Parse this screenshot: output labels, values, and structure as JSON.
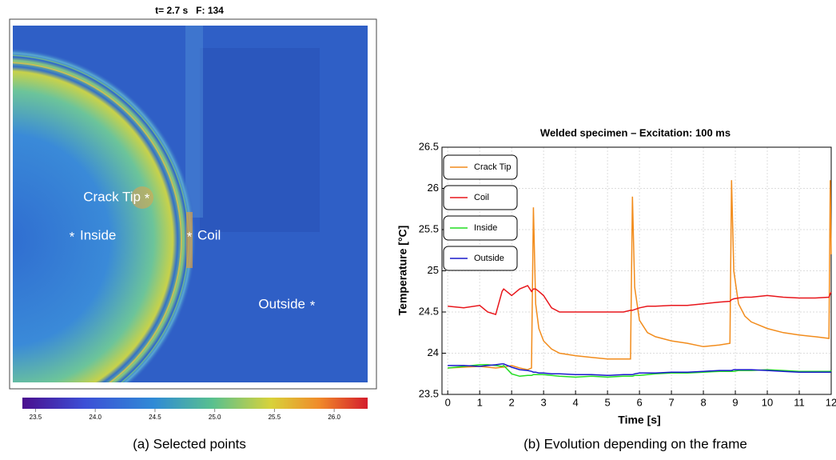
{
  "image": {
    "title": "t= 2.7 s   F: 134",
    "points": [
      "Crack Tip",
      "Inside",
      "Coil",
      "Outside"
    ],
    "colorbar": {
      "lim": [
        23.39,
        26.28
      ],
      "ticks": [
        23.5,
        {
          "value": 24,
          "label": "24.0"
        },
        24.5,
        {
          "value": 25,
          "label": "25.0"
        },
        25.5,
        {
          "value": 26,
          "label": "26.0"
        }
      ]
    }
  },
  "captions": [
    "(a) Selected points",
    "(b) Evolution depending on the frame"
  ],
  "chart_data": {
    "type": "line",
    "title": "Welded specimen – Excitation: 100 ms",
    "xlabel": "Time [s]",
    "ylabel": "Temperature [°C]",
    "x": [
      0,
      0.5,
      1,
      1.25,
      1.5,
      1.7,
      1.75,
      2,
      2.25,
      2.5,
      2.62,
      2.68,
      2.75,
      2.85,
      3,
      3.25,
      3.5,
      4,
      4.5,
      5,
      5.5,
      5.72,
      5.78,
      5.85,
      6,
      6.25,
      6.5,
      7,
      7.5,
      8,
      8.5,
      8.83,
      8.88,
      8.95,
      9.1,
      9.3,
      9.5,
      10,
      10.5,
      11,
      11.5,
      11.93,
      11.97,
      12
    ],
    "series": [
      {
        "name": "Crack Tip",
        "color": "#f28c1c",
        "values": [
          23.82,
          23.83,
          23.84,
          23.83,
          23.82,
          23.83,
          23.83,
          23.85,
          23.82,
          23.8,
          23.82,
          25.77,
          24.6,
          24.3,
          24.15,
          24.05,
          24.0,
          23.97,
          23.95,
          23.93,
          23.93,
          23.93,
          25.9,
          24.8,
          24.4,
          24.25,
          24.2,
          24.15,
          24.12,
          24.08,
          24.1,
          24.12,
          26.1,
          25.0,
          24.6,
          24.45,
          24.38,
          24.3,
          24.25,
          24.22,
          24.2,
          24.18,
          26.1,
          25.2
        ]
      },
      {
        "name": "Coil",
        "color": "#e8161b",
        "values": [
          24.57,
          24.55,
          24.58,
          24.5,
          24.47,
          24.75,
          24.78,
          24.7,
          24.78,
          24.82,
          24.75,
          24.78,
          24.78,
          24.75,
          24.7,
          24.55,
          24.5,
          24.5,
          24.5,
          24.5,
          24.5,
          24.52,
          24.52,
          24.53,
          24.55,
          24.57,
          24.57,
          24.58,
          24.58,
          24.6,
          24.62,
          24.63,
          24.65,
          24.66,
          24.67,
          24.68,
          24.68,
          24.7,
          24.68,
          24.67,
          24.67,
          24.68,
          24.72,
          24.74
        ]
      },
      {
        "name": "Inside",
        "color": "#22dd22",
        "values": [
          23.82,
          23.84,
          23.86,
          23.86,
          23.85,
          23.84,
          23.85,
          23.75,
          23.72,
          23.73,
          23.73,
          23.74,
          23.74,
          23.74,
          23.74,
          23.73,
          23.72,
          23.71,
          23.72,
          23.71,
          23.72,
          23.72,
          23.72,
          23.73,
          23.73,
          23.74,
          23.75,
          23.76,
          23.76,
          23.77,
          23.78,
          23.78,
          23.78,
          23.78,
          23.79,
          23.79,
          23.79,
          23.8,
          23.79,
          23.78,
          23.78,
          23.78,
          23.78,
          23.79
        ]
      },
      {
        "name": "Outside",
        "color": "#1a1acc",
        "values": [
          23.85,
          23.85,
          23.84,
          23.85,
          23.86,
          23.87,
          23.87,
          23.83,
          23.8,
          23.79,
          23.78,
          23.77,
          23.77,
          23.76,
          23.76,
          23.75,
          23.75,
          23.74,
          23.74,
          23.73,
          23.74,
          23.74,
          23.74,
          23.75,
          23.76,
          23.76,
          23.76,
          23.77,
          23.77,
          23.78,
          23.79,
          23.79,
          23.79,
          23.8,
          23.8,
          23.8,
          23.8,
          23.79,
          23.78,
          23.77,
          23.77,
          23.77,
          23.77,
          23.77
        ]
      }
    ],
    "xlim": [
      -0.18,
      12
    ],
    "ylim": [
      23.5,
      26.5
    ],
    "xticks": [
      0,
      1,
      2,
      3,
      4,
      5,
      6,
      7,
      8,
      9,
      10,
      11,
      12
    ],
    "yticks": [
      23.5,
      24,
      24.5,
      25,
      25.5,
      26,
      26.5
    ],
    "grid": true,
    "legend": "upper left"
  }
}
